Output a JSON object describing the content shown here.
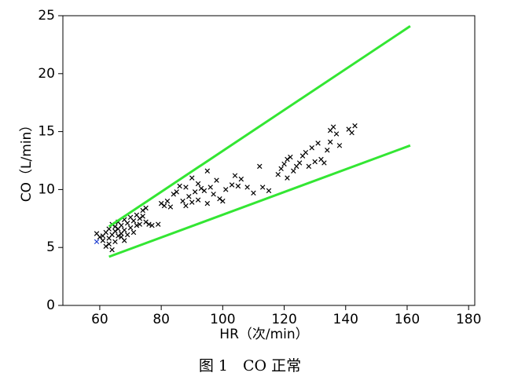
{
  "chart_data": {
    "type": "scatter",
    "xlabel": "HR（次/min）",
    "ylabel": "CO（L/min）",
    "caption": "图 1　CO 正常",
    "xlim": [
      48,
      182
    ],
    "ylim": [
      0,
      25
    ],
    "xticks": [
      60,
      80,
      100,
      120,
      140,
      160,
      180
    ],
    "yticks": [
      0,
      5,
      10,
      15,
      20,
      25
    ],
    "series": [
      {
        "color": "#000000",
        "marker": "x",
        "x": [
          59,
          60,
          61,
          61,
          62,
          62,
          63,
          63,
          63,
          64,
          64,
          64,
          65,
          65,
          65,
          66,
          66,
          66,
          67,
          67,
          67,
          68,
          68,
          68,
          69,
          69,
          70,
          70,
          71,
          71,
          72,
          72,
          73,
          73,
          74,
          74,
          75,
          75,
          76,
          77,
          79,
          80,
          81,
          82,
          83,
          84,
          85,
          86,
          87,
          88,
          88,
          89,
          90,
          90,
          91,
          92,
          92,
          93,
          94,
          95,
          95,
          96,
          97,
          98,
          99,
          100,
          101,
          103,
          104,
          105,
          106,
          108,
          110,
          112,
          113,
          115,
          118,
          119,
          120,
          121,
          121,
          122,
          123,
          124,
          125,
          126,
          127,
          128,
          129,
          130,
          131,
          132,
          133,
          134,
          135,
          135,
          136,
          137,
          138,
          141,
          142,
          143
        ],
        "values": [
          6.2,
          5.9,
          6.0,
          5.6,
          5.1,
          6.3,
          5.8,
          5.3,
          6.6,
          4.8,
          6.1,
          7.0,
          5.5,
          6.8,
          6.4,
          6.0,
          7.2,
          6.6,
          5.9,
          6.9,
          6.2,
          5.6,
          7.4,
          6.5,
          6.1,
          7.1,
          6.7,
          7.6,
          6.3,
          7.3,
          7.8,
          6.9,
          7.5,
          7.0,
          8.2,
          7.7,
          8.4,
          7.2,
          7.0,
          6.9,
          7.0,
          8.8,
          8.6,
          9.0,
          8.5,
          9.6,
          9.8,
          10.3,
          9.0,
          8.6,
          10.2,
          9.4,
          8.9,
          11.0,
          9.8,
          10.5,
          9.1,
          10.1,
          9.9,
          11.6,
          8.8,
          10.2,
          9.6,
          10.8,
          9.2,
          9.0,
          10.0,
          10.4,
          11.2,
          10.3,
          10.9,
          10.2,
          9.7,
          12.0,
          10.2,
          9.9,
          11.3,
          11.8,
          12.2,
          12.6,
          11.0,
          12.8,
          11.6,
          12.0,
          12.3,
          12.9,
          13.2,
          12.0,
          13.6,
          12.4,
          14.0,
          12.6,
          12.3,
          13.4,
          14.1,
          15.1,
          15.4,
          14.8,
          13.8,
          15.2,
          14.9,
          15.5
        ]
      },
      {
        "color": "#1f3fd0",
        "marker": "x",
        "x": [
          59
        ],
        "values": [
          5.5
        ]
      },
      {
        "color": "#33e633",
        "marker": "line",
        "x": [
          63,
          161
        ],
        "values": [
          6.8,
          24.1
        ]
      },
      {
        "color": "#33e633",
        "marker": "line",
        "x": [
          63,
          161
        ],
        "values": [
          4.2,
          13.8
        ]
      }
    ]
  }
}
